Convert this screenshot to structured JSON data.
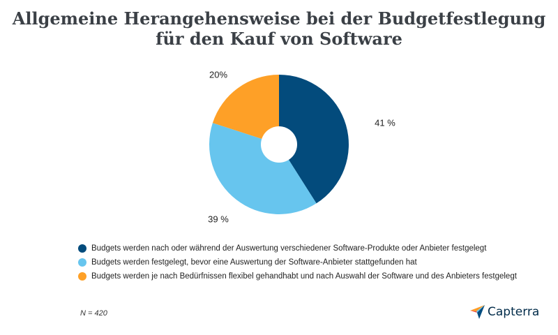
{
  "title": {
    "line1": "Allgemeine Herangehensweise bei der Budgetfestlegung",
    "line2": "für den Kauf von Software"
  },
  "chart_data": {
    "type": "pie",
    "style": "donut",
    "start_angle_deg": 0,
    "direction": "clockwise",
    "slices": [
      {
        "label": "Budgets werden nach oder während der Auswertung verschiedener Software-Produkte oder Anbieter festgelegt",
        "value": 41,
        "value_label": "41 %",
        "color": "#034b7c"
      },
      {
        "label": "Budgets werden festgelegt, bevor eine Auswertung der Software-Anbieter stattgefunden hat",
        "value": 39,
        "value_label": "39 %",
        "color": "#67c5ee"
      },
      {
        "label": "Budgets werden je nach Bedürfnissen flexibel gehandhabt und nach Auswahl der Software und des Anbieters festgelegt",
        "value": 20,
        "value_label": "20%",
        "color": "#fea027"
      }
    ],
    "legend_position": "bottom-left"
  },
  "footnote": "N = 420",
  "brand": {
    "name": "Capterra",
    "logo_icon": "capterra-arrow-icon"
  }
}
